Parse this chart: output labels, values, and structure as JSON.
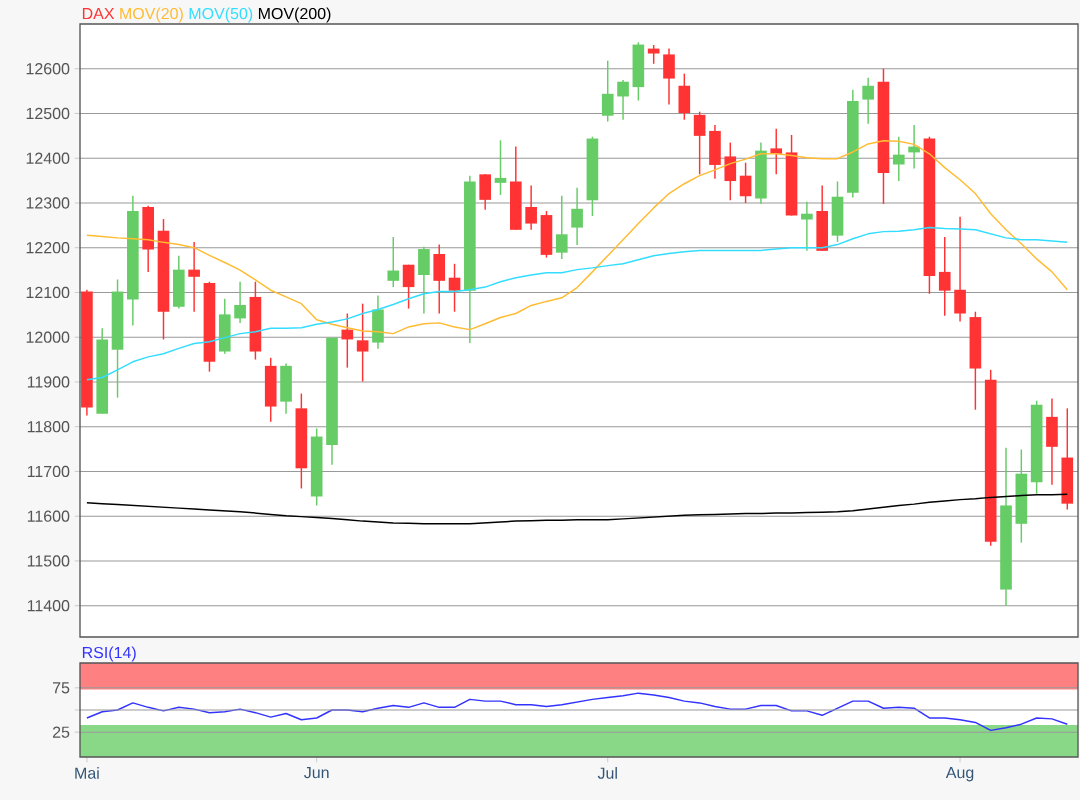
{
  "chart_data": [
    {
      "type": "candlestick",
      "legend": "top left",
      "grid": "y",
      "tick_labels": "y",
      "ylim": [
        11330,
        12700
      ],
      "yticks": [
        11400,
        11500,
        11600,
        11700,
        11800,
        11900,
        12000,
        12100,
        12200,
        12300,
        12400,
        12500,
        12600
      ],
      "categories": [
        null,
        null,
        null,
        null,
        null,
        null,
        null,
        null,
        null,
        null,
        null,
        null,
        null,
        null,
        null,
        null,
        null,
        null,
        null,
        null,
        null,
        null,
        null,
        null,
        null,
        null,
        null,
        null,
        null,
        null,
        null,
        null,
        null,
        null,
        null,
        null,
        null,
        null,
        null,
        null,
        null,
        null,
        null,
        null,
        null,
        null,
        null,
        null,
        null,
        null,
        null,
        null,
        null,
        null,
        null,
        null,
        null,
        null,
        null,
        null,
        null,
        null,
        null,
        null,
        null
      ],
      "series": [
        {
          "name": "DAX",
          "type": "candlestick",
          "color": "#ff3333",
          "colors": [
            "#ff3333",
            "#66cc66",
            "#66cc66",
            "#66cc66",
            "#ff3333",
            "#ff3333",
            "#66cc66",
            "#ff3333",
            "#ff3333",
            "#66cc66",
            "#66cc66",
            "#ff3333",
            "#ff3333",
            "#66cc66",
            "#ff3333",
            "#66cc66",
            "#66cc66",
            "#ff3333",
            "#ff3333",
            "#66cc66",
            "#66cc66",
            "#ff3333",
            "#66cc66",
            "#ff3333",
            "#ff3333",
            "#66cc66",
            "#ff3333",
            "#66cc66",
            "#ff3333",
            "#ff3333",
            "#ff3333",
            "#66cc66",
            "#66cc66",
            "#66cc66",
            "#66cc66",
            "#66cc66",
            "#66cc66",
            "#ff3333",
            "#ff3333",
            "#ff3333",
            "#ff3333",
            "#ff3333",
            "#ff3333",
            "#ff3333",
            "#66cc66",
            "#ff3333",
            "#ff3333",
            "#66cc66",
            "#ff3333",
            "#66cc66",
            "#66cc66",
            "#66cc66",
            "#ff3333",
            "#66cc66",
            "#66cc66",
            "#ff3333",
            "#ff3333",
            "#ff3333",
            "#ff3333",
            "#ff3333",
            "#66cc66",
            "#66cc66",
            "#66cc66",
            "#ff3333",
            "#ff3333"
          ],
          "ohlc": [
            [
              12102,
              12106,
              11825,
              11843
            ],
            [
              11829,
              12020,
              11829,
              11995
            ],
            [
              11972,
              12129,
              11865,
              12102
            ],
            [
              12084,
              12316,
              12026,
              12282
            ],
            [
              12291,
              12294,
              12146,
              12196
            ],
            [
              12238,
              12264,
              11995,
              12057
            ],
            [
              12068,
              12182,
              12064,
              12151
            ],
            [
              12151,
              12213,
              12057,
              12135
            ],
            [
              12121,
              12124,
              11923,
              11945
            ],
            [
              11968,
              12086,
              11963,
              12051
            ],
            [
              12042,
              12124,
              12032,
              12072
            ],
            [
              12090,
              12124,
              11950,
              11968
            ],
            [
              11936,
              11954,
              11811,
              11845
            ],
            [
              11856,
              11941,
              11829,
              11936
            ],
            [
              11841,
              11874,
              11662,
              11707
            ],
            [
              11644,
              11796,
              11624,
              11778
            ],
            [
              11759,
              11999,
              11715,
              11999
            ],
            [
              12017,
              12053,
              11932,
              11995
            ],
            [
              11993,
              12075,
              11901,
              11968
            ],
            [
              11988,
              12093,
              11974,
              12062
            ],
            [
              12126,
              12224,
              12112,
              12149
            ],
            [
              12162,
              12162,
              12064,
              12112
            ],
            [
              12139,
              12202,
              12053,
              12197
            ],
            [
              12186,
              12207,
              12053,
              12126
            ],
            [
              12133,
              12164,
              12057,
              12104
            ],
            [
              12104,
              12361,
              11987,
              12348
            ],
            [
              12364,
              12364,
              12285,
              12307
            ],
            [
              12345,
              12440,
              12318,
              12356
            ],
            [
              12348,
              12426,
              12240,
              12240
            ],
            [
              12291,
              12339,
              12240,
              12254
            ],
            [
              12273,
              12282,
              12178,
              12184
            ],
            [
              12189,
              12316,
              12175,
              12230
            ],
            [
              12245,
              12334,
              12206,
              12287
            ],
            [
              12306,
              12448,
              12271,
              12444
            ],
            [
              12495,
              12618,
              12482,
              12544
            ],
            [
              12538,
              12575,
              12486,
              12571
            ],
            [
              12559,
              12659,
              12529,
              12654
            ],
            [
              12645,
              12653,
              12611,
              12634
            ],
            [
              12632,
              12645,
              12520,
              12578
            ],
            [
              12562,
              12589,
              12486,
              12501
            ],
            [
              12497,
              12504,
              12364,
              12450
            ],
            [
              12461,
              12474,
              12354,
              12385
            ],
            [
              12404,
              12435,
              12306,
              12349
            ],
            [
              12361,
              12390,
              12300,
              12315
            ],
            [
              12310,
              12435,
              12298,
              12417
            ],
            [
              12422,
              12466,
              12364,
              12410
            ],
            [
              12413,
              12452,
              12272,
              12272
            ],
            [
              12263,
              12303,
              12193,
              12276
            ],
            [
              12282,
              12339,
              12193,
              12193
            ],
            [
              12227,
              12348,
              12213,
              12314
            ],
            [
              12323,
              12553,
              12312,
              12528
            ],
            [
              12531,
              12580,
              12477,
              12562
            ],
            [
              12571,
              12600,
              12298,
              12367
            ],
            [
              12386,
              12448,
              12349,
              12408
            ],
            [
              12413,
              12474,
              12377,
              12426
            ],
            [
              12444,
              12448,
              12097,
              12137
            ],
            [
              12146,
              12224,
              12048,
              12104
            ],
            [
              12106,
              12269,
              12035,
              12053
            ],
            [
              12045,
              12057,
              11838,
              11930
            ],
            [
              11905,
              11927,
              11534,
              11543
            ],
            [
              11436,
              11753,
              11400,
              11624
            ],
            [
              11583,
              11749,
              11541,
              11695
            ],
            [
              11676,
              11858,
              11650,
              11849
            ],
            [
              11822,
              11863,
              11670,
              11755
            ],
            [
              11731,
              11841,
              11615,
              11628
            ]
          ]
        },
        {
          "name": "MOV(20)",
          "type": "line",
          "color": "#ffbb33",
          "values": [
            12228,
            12225,
            12222,
            12220,
            12218,
            12212,
            12207,
            12200,
            12183,
            12167,
            12150,
            12128,
            12105,
            12090,
            12075,
            12039,
            12029,
            12021,
            12014,
            12012,
            12008,
            12023,
            12030,
            12032,
            12023,
            12017,
            12030,
            12044,
            12053,
            12071,
            12080,
            12088,
            12111,
            12146,
            12182,
            12218,
            12254,
            12289,
            12321,
            12343,
            12361,
            12374,
            12388,
            12398,
            12410,
            12410,
            12406,
            12401,
            12399,
            12399,
            12414,
            12432,
            12439,
            12438,
            12431,
            12410,
            12379,
            12352,
            12321,
            12276,
            12240,
            12209,
            12175,
            12146,
            12106
          ]
        },
        {
          "name": "MOV(50)",
          "type": "line",
          "color": "#33ddff",
          "values": [
            11905,
            11910,
            11927,
            11945,
            11956,
            11963,
            11975,
            11986,
            11990,
            11999,
            12008,
            12012,
            12020,
            12020,
            12021,
            12029,
            12034,
            12041,
            12053,
            12062,
            12073,
            12086,
            12097,
            12102,
            12102,
            12106,
            12112,
            12124,
            12133,
            12139,
            12144,
            12144,
            12151,
            12155,
            12160,
            12164,
            12173,
            12182,
            12187,
            12191,
            12194,
            12194,
            12194,
            12194,
            12194,
            12197,
            12200,
            12200,
            12200,
            12207,
            12220,
            12231,
            12236,
            12237,
            12240,
            12245,
            12243,
            12242,
            12240,
            12231,
            12222,
            12218,
            12218,
            12215,
            12212
          ]
        },
        {
          "name": "MOV(200)",
          "type": "line",
          "color": "#000000",
          "values": [
            11630,
            11628,
            11626,
            11624,
            11622,
            11620,
            11618,
            11616,
            11614,
            11612,
            11610,
            11607,
            11604,
            11601,
            11599,
            11597,
            11595,
            11592,
            11589,
            11587,
            11585,
            11584,
            11583,
            11583,
            11583,
            11583,
            11585,
            11587,
            11589,
            11590,
            11591,
            11591,
            11592,
            11592,
            11592,
            11594,
            11596,
            11598,
            11600,
            11602,
            11603,
            11604,
            11605,
            11606,
            11606,
            11607,
            11607,
            11608,
            11609,
            11610,
            11612,
            11616,
            11620,
            11624,
            11627,
            11631,
            11634,
            11637,
            11639,
            11642,
            11644,
            11646,
            11648,
            11648,
            11649
          ]
        }
      ]
    },
    {
      "type": "line",
      "title": "RSI(14)",
      "grid": "y",
      "ylim": [
        -3,
        103
      ],
      "yticks": [
        25,
        {
          "value": 50,
          "label": null
        },
        75
      ],
      "categories": [
        "Mai",
        null,
        null,
        null,
        null,
        null,
        null,
        null,
        null,
        null,
        null,
        null,
        null,
        null,
        null,
        "Jun",
        null,
        null,
        null,
        null,
        null,
        null,
        null,
        null,
        null,
        null,
        null,
        null,
        null,
        null,
        null,
        null,
        null,
        null,
        "Jul",
        null,
        null,
        null,
        null,
        null,
        null,
        null,
        null,
        null,
        null,
        null,
        null,
        null,
        null,
        null,
        null,
        null,
        null,
        null,
        null,
        null,
        null,
        "Aug",
        null,
        null,
        null,
        null,
        null,
        null,
        null
      ],
      "bands": [
        {
          "axis": "y",
          "from": 73,
          "to": 103,
          "color": "#ff8080"
        },
        {
          "axis": "y",
          "from": -3,
          "to": 33,
          "color": "#88d888"
        }
      ],
      "series": [
        {
          "color": "#3333ff",
          "values": [
            41,
            48,
            50,
            58,
            53,
            49,
            53,
            51,
            47,
            48,
            51,
            47,
            42,
            46,
            39,
            41,
            50,
            50,
            48,
            52,
            55,
            53,
            58,
            53,
            53,
            62,
            60,
            60,
            56,
            56,
            54,
            56,
            59,
            62,
            64,
            66,
            69,
            67,
            64,
            60,
            58,
            54,
            51,
            51,
            55,
            55,
            49,
            49,
            44,
            52,
            60,
            60,
            52,
            53,
            52,
            41,
            41,
            39,
            36,
            27,
            30,
            34,
            41,
            40,
            34
          ]
        }
      ]
    }
  ]
}
